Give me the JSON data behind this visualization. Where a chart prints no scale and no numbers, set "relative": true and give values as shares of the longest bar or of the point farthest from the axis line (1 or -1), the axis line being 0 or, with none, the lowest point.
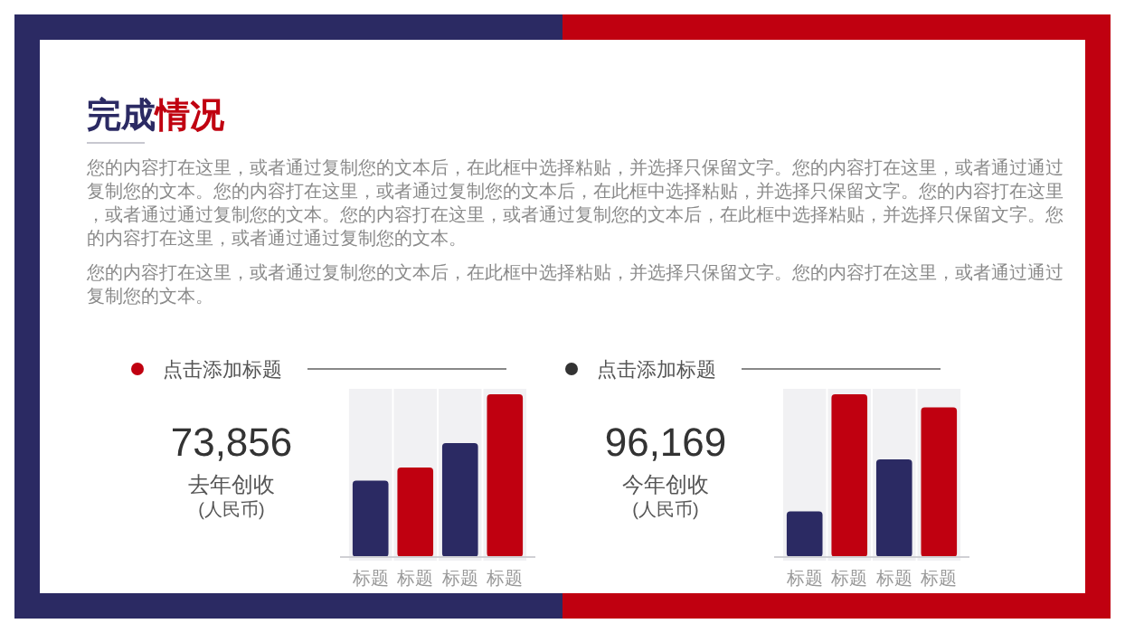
{
  "chart_data": [
    {
      "type": "other",
      "title": "完成情况",
      "annotations": [
        "您的内容打在这里，或者通过复制您的文本后，在此框中选择粘贴，并选择只保留文字。您的内容打在这里，或者通过通过复制您的文本。您的内容打在这里，或者通过复制您的文本后，在此框中选择粘贴，并选择只保留文字。您的内容打在这里，或者通过通过复制您的文本。您的内容打在这里，或者通过复制您的文本后，在此框中选择粘贴，并选择只保留文字。您的内容打在这里，或者通过通过复制您的文本。",
        "您的内容打在这里，或者通过复制您的文本后，在此框中选择粘贴，并选择只保留文字。您的内容打在这里，或者通过通过复制您的文本。"
      ]
    },
    {
      "type": "bar",
      "title": "点击添加标题",
      "categories": [
        "标题",
        "标题",
        "标题",
        "标题"
      ],
      "values": [
        0.47,
        0.55,
        0.7,
        1
      ],
      "colors": [
        "#2b2a63",
        "#c00010",
        "#2b2a63",
        "#c00010"
      ],
      "relative": true,
      "annotations": [
        "73,856",
        "去年创收",
        "(人民币)"
      ]
    },
    {
      "type": "bar",
      "title": "点击添加标题",
      "categories": [
        "标题",
        "标题",
        "标题",
        "标题"
      ],
      "values": [
        0.28,
        1,
        0.6,
        0.92
      ],
      "colors": [
        "#2b2a63",
        "#c00010",
        "#2b2a63",
        "#c00010"
      ],
      "relative": true,
      "annotations": [
        "96,169",
        "今年创收",
        "(人民币)"
      ]
    }
  ]
}
